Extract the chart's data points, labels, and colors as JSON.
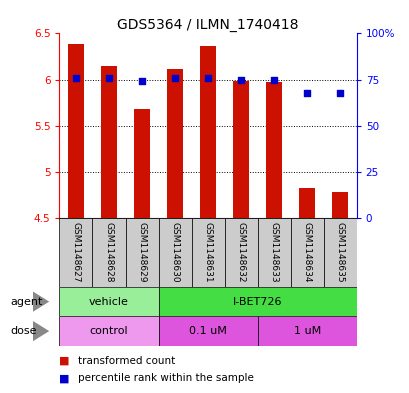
{
  "title": "GDS5364 / ILMN_1740418",
  "samples": [
    "GSM1148627",
    "GSM1148628",
    "GSM1148629",
    "GSM1148630",
    "GSM1148631",
    "GSM1148632",
    "GSM1148633",
    "GSM1148634",
    "GSM1148635"
  ],
  "bar_values": [
    6.39,
    6.15,
    5.68,
    6.11,
    6.36,
    5.99,
    5.97,
    4.83,
    4.78
  ],
  "bar_bottom": 4.5,
  "percentile_values": [
    76,
    76,
    74,
    76,
    76,
    75,
    75,
    68,
    68
  ],
  "ylim_left": [
    4.5,
    6.5
  ],
  "ylim_right": [
    0,
    100
  ],
  "yticks_left": [
    4.5,
    5.0,
    5.5,
    6.0,
    6.5
  ],
  "ytick_labels_left": [
    "4.5",
    "5",
    "5.5",
    "6",
    "6.5"
  ],
  "yticks_right": [
    0,
    25,
    50,
    75,
    100
  ],
  "ytick_labels_right": [
    "0",
    "25",
    "50",
    "75",
    "100%"
  ],
  "bar_color": "#cc1100",
  "dot_color": "#0000cc",
  "agent_groups": [
    {
      "text": "vehicle",
      "start": 0,
      "end": 3,
      "color": "#99ee99"
    },
    {
      "text": "I-BET726",
      "start": 3,
      "end": 9,
      "color": "#44dd44"
    }
  ],
  "dose_groups": [
    {
      "text": "control",
      "start": 0,
      "end": 3,
      "color": "#ee99ee"
    },
    {
      "text": "0.1 uM",
      "start": 3,
      "end": 6,
      "color": "#dd55dd"
    },
    {
      "text": "1 uM",
      "start": 6,
      "end": 9,
      "color": "#dd55dd"
    }
  ],
  "legend_bar_label": "transformed count",
  "legend_dot_label": "percentile rank within the sample",
  "agent_row_label": "agent",
  "dose_row_label": "dose",
  "grid_yticks": [
    5.0,
    5.5,
    6.0
  ],
  "sample_box_color": "#cccccc",
  "bg_color": "#ffffff",
  "bar_width": 0.5
}
